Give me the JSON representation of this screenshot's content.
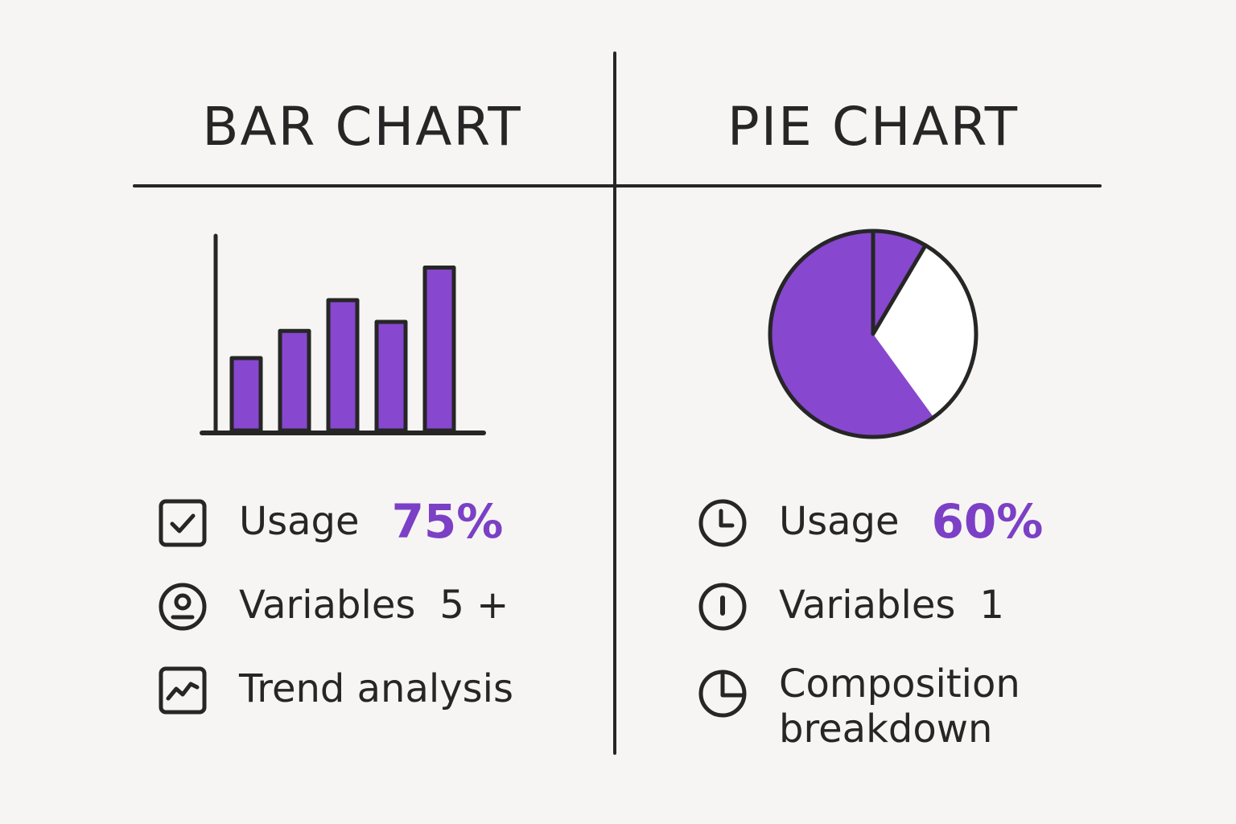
{
  "colors": {
    "accent": "#7b40c6",
    "fill": "#8747cf",
    "ink": "#262626",
    "background": "#f6f5f3"
  },
  "bar_panel": {
    "title": "BAR CHART",
    "features": [
      {
        "icon": "checkbox-check-icon",
        "label": "Usage",
        "value": "75%"
      },
      {
        "icon": "user-circle-icon",
        "label": "Variables",
        "value": "5 +"
      },
      {
        "icon": "line-chart-icon",
        "label": "Trend analysis",
        "value": ""
      }
    ]
  },
  "pie_panel": {
    "title": "PIE CHART",
    "features": [
      {
        "icon": "clock-icon",
        "label": "Usage",
        "value": "60%"
      },
      {
        "icon": "one-circle-icon",
        "label": "Variables",
        "value": "1"
      },
      {
        "icon": "pie-chart-icon",
        "label": "Composition breakdown",
        "value": ""
      }
    ]
  },
  "chart_data": [
    {
      "type": "bar",
      "values": [
        4,
        5.5,
        7.2,
        6,
        9
      ],
      "ylim": [
        0,
        10
      ]
    },
    {
      "type": "pie",
      "values": [
        0.085,
        0.6
      ],
      "remainder": 0.315
    }
  ]
}
